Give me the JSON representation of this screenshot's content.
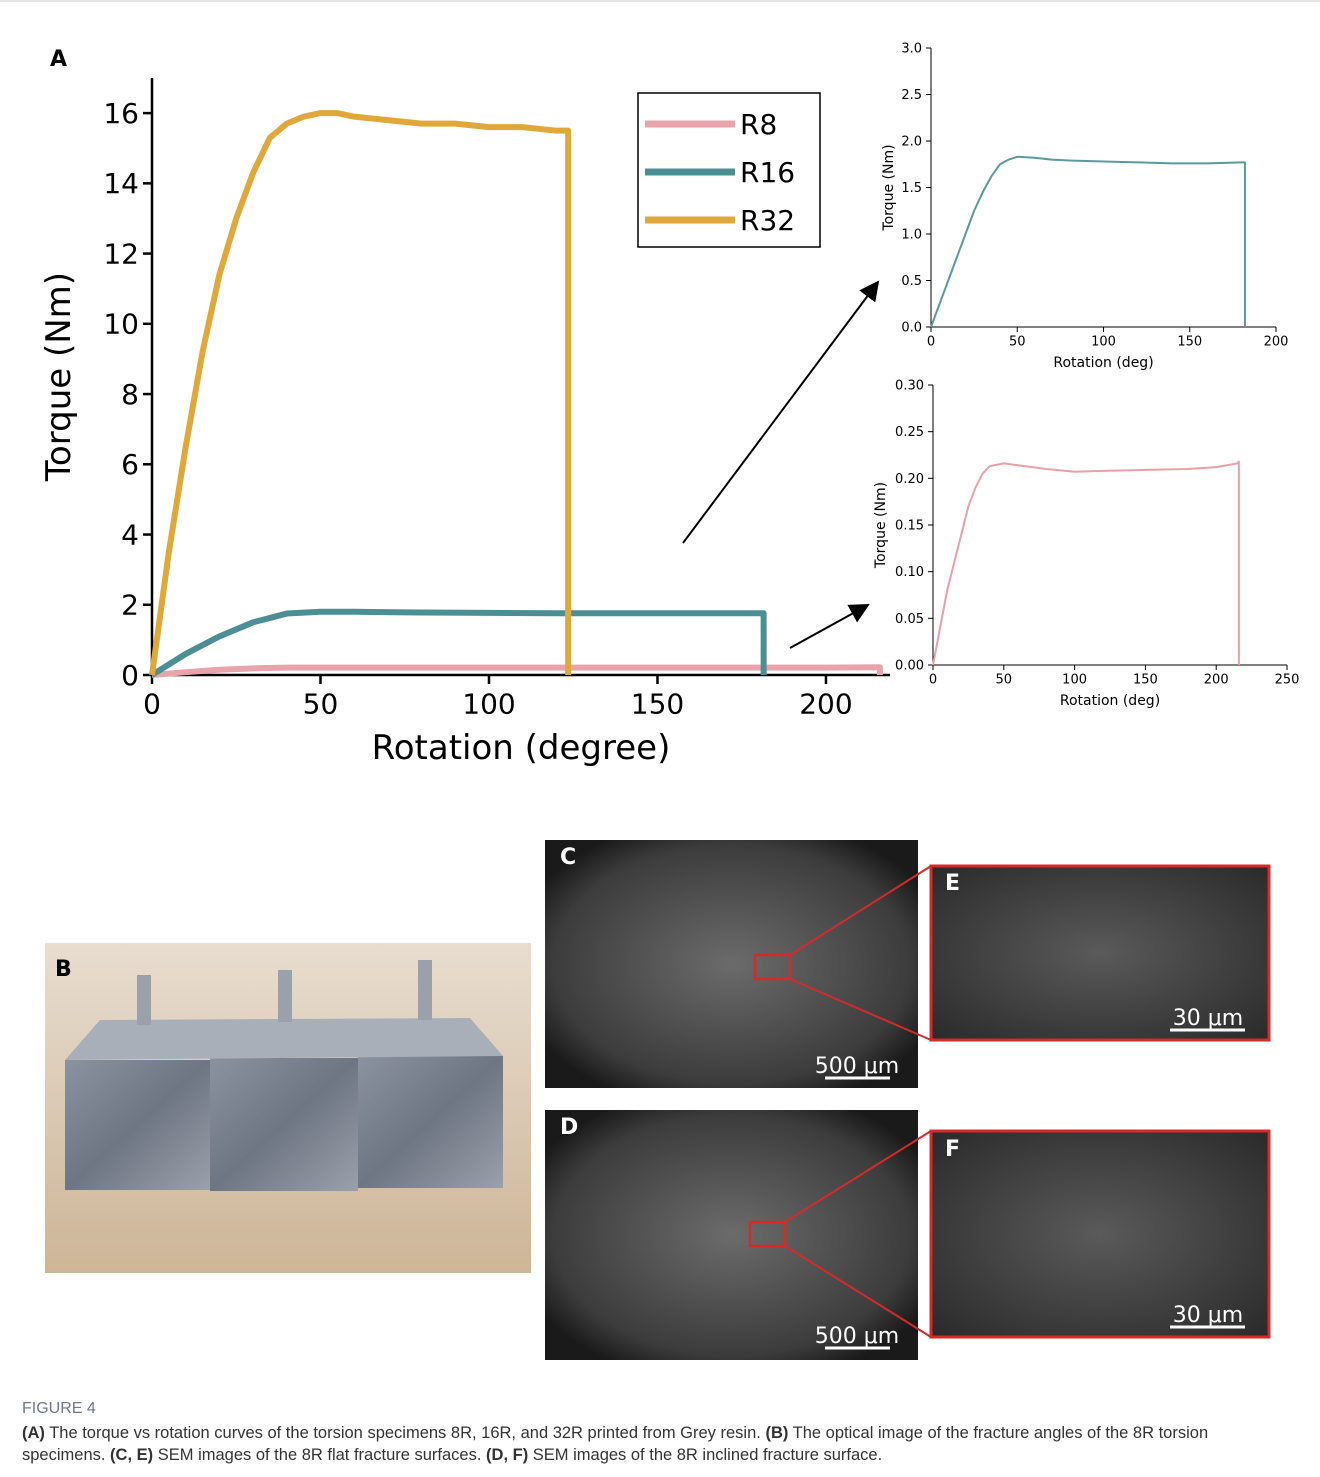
{
  "chart_data": [
    {
      "type": "line",
      "xlabel": "Rotation (degree)",
      "ylabel": "Torque (Nm)",
      "xlim": [
        0,
        219
      ],
      "ylim": [
        0,
        17
      ],
      "xticks": [
        0,
        50,
        100,
        150,
        200
      ],
      "yticks": [
        0,
        2,
        4,
        6,
        8,
        10,
        12,
        14,
        16
      ],
      "legend": "upper right",
      "series": [
        {
          "name": "R8",
          "color": "#e9a3ab",
          "x": [
            0,
            10,
            20,
            30,
            40,
            50,
            100,
            150,
            200,
            216,
            216
          ],
          "values": [
            0,
            0.08,
            0.15,
            0.19,
            0.21,
            0.21,
            0.21,
            0.21,
            0.21,
            0.22,
            0
          ]
        },
        {
          "name": "R16",
          "color": "#4a8f94",
          "x": [
            0,
            5,
            10,
            20,
            30,
            40,
            50,
            60,
            80,
            100,
            120,
            140,
            160,
            180,
            181.5,
            181.5
          ],
          "values": [
            0,
            0.3,
            0.6,
            1.1,
            1.5,
            1.75,
            1.8,
            1.8,
            1.78,
            1.77,
            1.76,
            1.76,
            1.76,
            1.76,
            1.76,
            0
          ]
        },
        {
          "name": "R32",
          "color": "#e0a83a",
          "x": [
            0,
            5,
            10,
            15,
            20,
            25,
            30,
            35,
            40,
            45,
            50,
            55,
            60,
            70,
            80,
            90,
            100,
            110,
            120,
            123.5,
            123.5
          ],
          "values": [
            0,
            3.5,
            6.5,
            9.2,
            11.4,
            13.0,
            14.3,
            15.3,
            15.7,
            15.9,
            16.0,
            16.0,
            15.9,
            15.8,
            15.7,
            15.7,
            15.6,
            15.6,
            15.5,
            15.5,
            0
          ]
        }
      ]
    },
    {
      "type": "line",
      "xlabel": "Rotation (deg)",
      "ylabel": "Torque (Nm)",
      "xlim": [
        0,
        200
      ],
      "ylim": [
        0,
        3
      ],
      "xticks": [
        0,
        50,
        100,
        150,
        200
      ],
      "yticks": [
        {
          "value": 0,
          "label": "0.0"
        },
        0.5,
        {
          "value": 1,
          "label": "1.0"
        },
        1.5,
        {
          "value": 2,
          "label": "2.0"
        },
        2.5,
        {
          "value": 3,
          "label": "3.0"
        }
      ],
      "series": [
        {
          "color": "#5a9a9e",
          "x": [
            0,
            5,
            10,
            15,
            20,
            25,
            30,
            35,
            40,
            45,
            50,
            60,
            70,
            80,
            100,
            120,
            140,
            160,
            180,
            182,
            182
          ],
          "values": [
            0,
            0.25,
            0.5,
            0.75,
            1.0,
            1.25,
            1.45,
            1.62,
            1.75,
            1.8,
            1.83,
            1.82,
            1.8,
            1.79,
            1.78,
            1.77,
            1.76,
            1.76,
            1.77,
            1.77,
            0
          ]
        }
      ]
    },
    {
      "type": "line",
      "xlabel": "Rotation (deg)",
      "ylabel": "Torque (Nm)",
      "xlim": [
        0,
        250
      ],
      "ylim": [
        0,
        0.3
      ],
      "xticks": [
        0,
        50,
        100,
        150,
        200,
        250
      ],
      "yticks": [
        {
          "value": 0,
          "label": "0.00"
        },
        {
          "value": 0.05,
          "label": "0.05"
        },
        {
          "value": 0.1,
          "label": "0.10"
        },
        {
          "value": 0.15,
          "label": "0.15"
        },
        {
          "value": 0.2,
          "label": "0.20"
        },
        {
          "value": 0.25,
          "label": "0.25"
        },
        {
          "value": 0.3,
          "label": "0.30"
        }
      ],
      "series": [
        {
          "color": "#e9a0a8",
          "x": [
            0,
            5,
            10,
            15,
            20,
            25,
            30,
            35,
            40,
            50,
            60,
            80,
            100,
            120,
            150,
            180,
            200,
            215,
            216,
            216
          ],
          "values": [
            0,
            0.04,
            0.08,
            0.11,
            0.14,
            0.17,
            0.19,
            0.205,
            0.213,
            0.216,
            0.214,
            0.21,
            0.207,
            0.208,
            0.209,
            0.21,
            0.212,
            0.216,
            0.218,
            0
          ]
        }
      ]
    }
  ],
  "panels": {
    "labels": [
      "A",
      "B",
      "C",
      "D",
      "E",
      "F"
    ],
    "scale_bars": [
      "500 μm",
      "500 μm",
      "30 μm",
      "30 μm"
    ]
  },
  "caption": {
    "title": "FIGURE 4",
    "parts": [
      "(A)",
      " The torque vs rotation curves of the torsion specimens 8R, 16R, and 32R printed from Grey resin. ",
      "(B)",
      " The optical image of the fracture angles of the 8R torsion specimens. ",
      "(C, E)",
      " SEM images of the 8R flat fracture surfaces. ",
      "(D, F)",
      " SEM images of the 8R inclined fracture surface."
    ]
  }
}
